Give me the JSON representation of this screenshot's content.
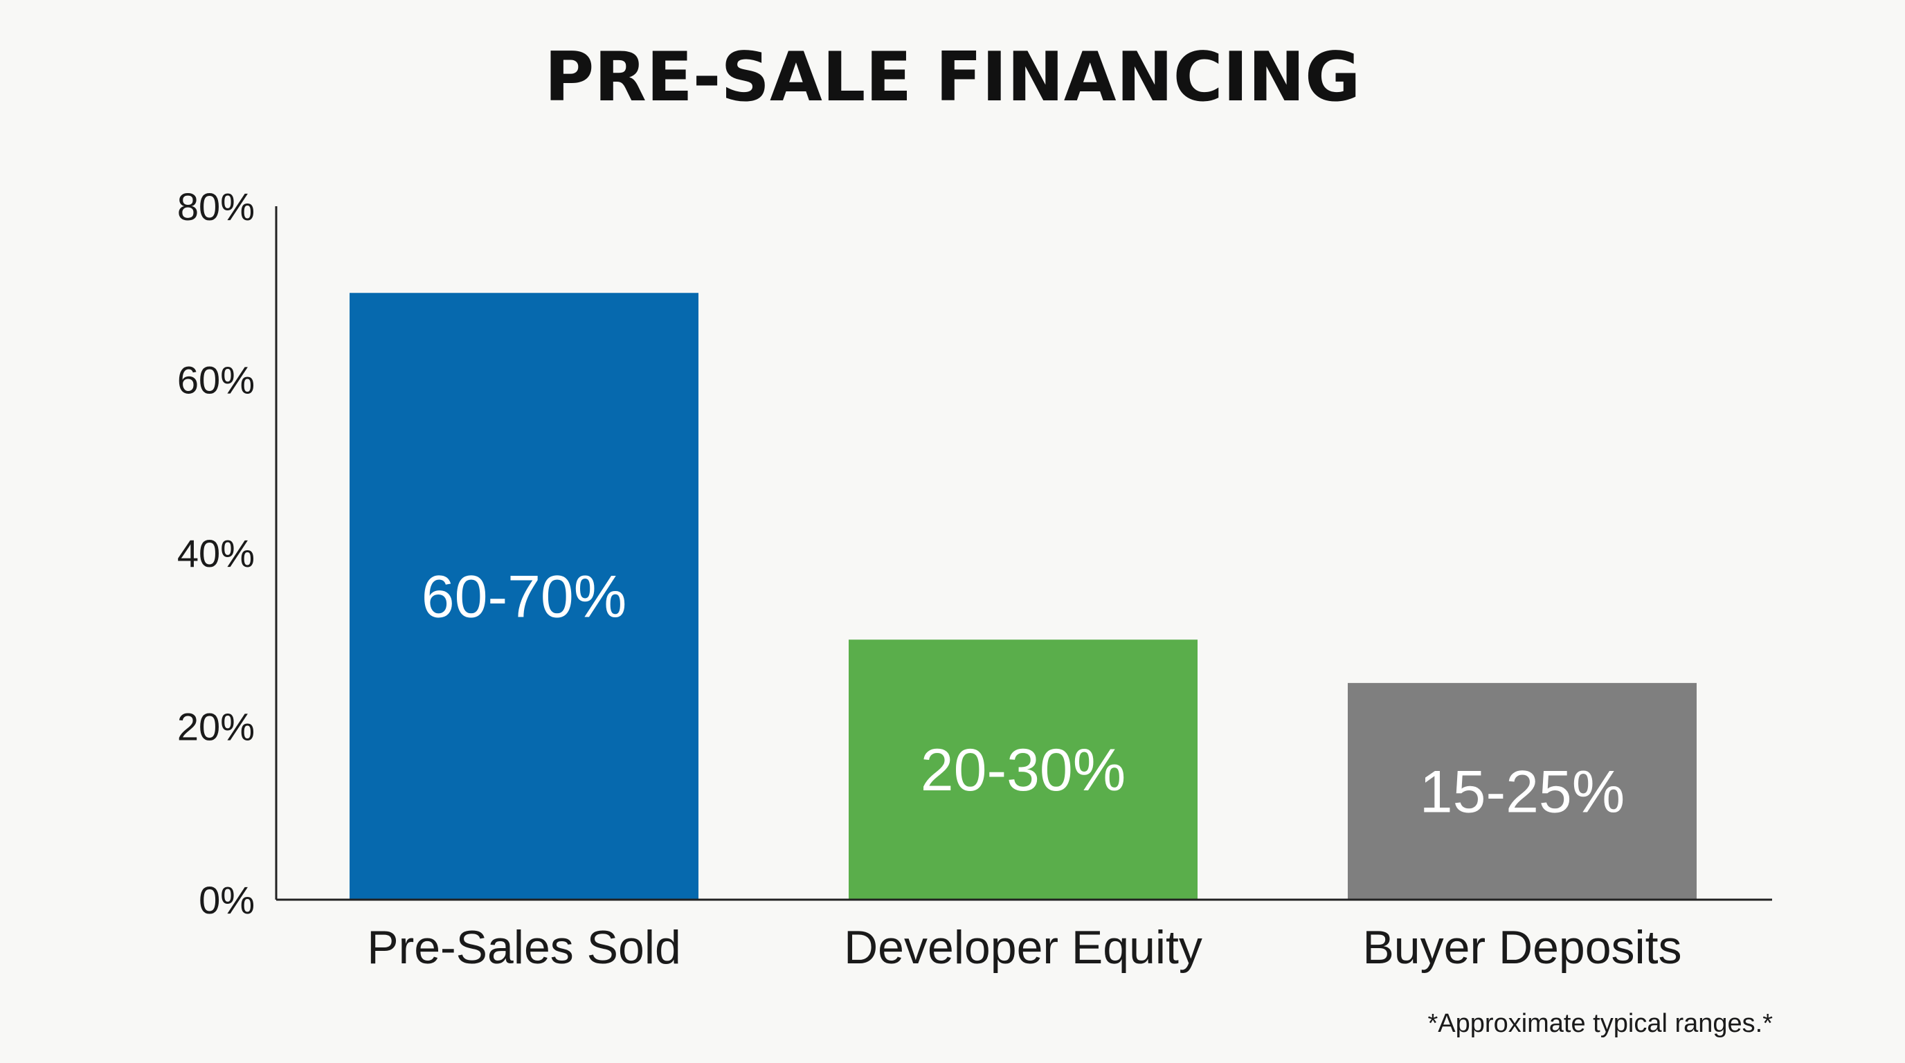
{
  "chart_data": {
    "type": "bar",
    "title": "PRE-SALE FINANCING",
    "categories": [
      "Pre-Sales Sold",
      "Developer Equity",
      "Buyer Deposits"
    ],
    "values": [
      70,
      30,
      25
    ],
    "data_labels": [
      "60-70%",
      "20-30%",
      "15-25%"
    ],
    "colors": [
      "#0669ae",
      "#5aae4b",
      "#7f7f7f"
    ],
    "ylim": [
      0,
      80
    ],
    "yticks": [
      0,
      20,
      40,
      60,
      80
    ],
    "ytick_labels": [
      "0%",
      "20%",
      "40%",
      "60%",
      "80%"
    ],
    "grid": false,
    "footnote": "*Approximate typical ranges.*"
  }
}
